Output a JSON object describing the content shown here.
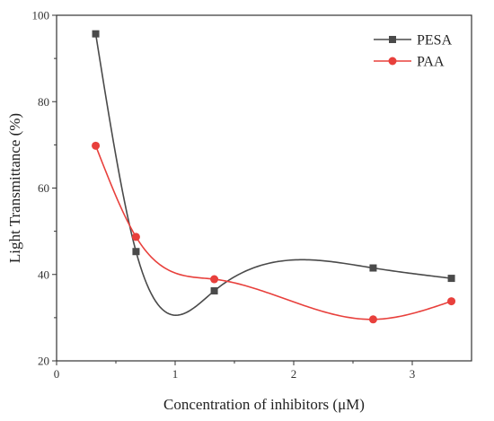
{
  "chart_data": {
    "type": "line",
    "xlabel": "Concentration of inhibitors (μM)",
    "ylabel": "Light Transmittance (%)",
    "xlim": [
      0,
      3.5
    ],
    "ylim": [
      20,
      100
    ],
    "x_ticks": [
      0,
      1,
      2,
      3
    ],
    "y_ticks": [
      20,
      40,
      60,
      80,
      100
    ],
    "x_tick_labels": [
      "0",
      "1",
      "2",
      "3"
    ],
    "y_tick_labels": [
      "20",
      "40",
      "60",
      "80",
      "100"
    ],
    "grid": false,
    "legend_position": "top-right",
    "series": [
      {
        "name": "PESA",
        "color": "#4a4a4a",
        "marker": "square",
        "x": [
          0.33,
          0.67,
          1.33,
          2.67,
          3.33
        ],
        "y": [
          95.7,
          45.3,
          36.2,
          41.5,
          39.1
        ],
        "fit": "smooth-curve"
      },
      {
        "name": "PAA",
        "color": "#e8403c",
        "marker": "circle",
        "x": [
          0.33,
          0.67,
          1.33,
          2.67,
          3.33
        ],
        "y": [
          69.8,
          48.7,
          38.9,
          29.6,
          33.8
        ],
        "fit": "smooth-curve"
      }
    ]
  }
}
